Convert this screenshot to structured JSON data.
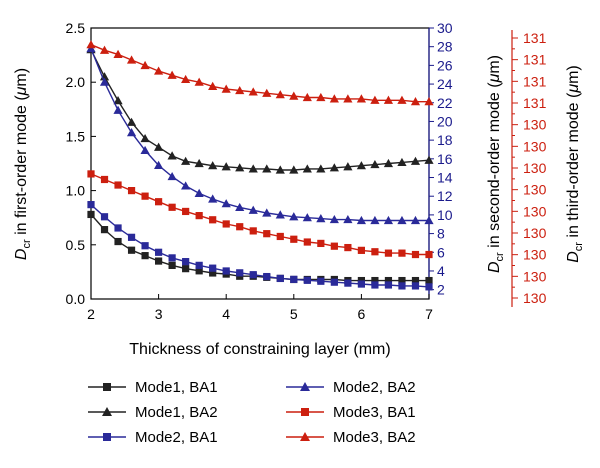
{
  "chart_data": {
    "type": "line",
    "xlabel": "Thickness of constraining layer (mm)",
    "x_ticks": [
      "2",
      "3",
      "4",
      "5",
      "6",
      "7"
    ],
    "xlim": [
      2,
      7
    ],
    "axes": {
      "left": {
        "label_main": "D",
        "label_sub": "cr",
        "label_rest": " in first-order mode (",
        "label_unit_italic": "μ",
        "label_end": "m)",
        "lim": [
          0,
          2.5
        ],
        "ticks": [
          "0.0",
          "0.5",
          "1.0",
          "1.5",
          "2.0",
          "2.5"
        ],
        "color": "#000000"
      },
      "right1": {
        "label_main": "D",
        "label_sub": "cr",
        "label_rest": " in second-order mode (",
        "label_unit_italic": "μ",
        "label_end": "m)",
        "lim": [
          1,
          30
        ],
        "ticks": [
          "2",
          "4",
          "6",
          "8",
          "10",
          "12",
          "14",
          "16",
          "18",
          "20",
          "22",
          "24",
          "26",
          "28",
          "30"
        ],
        "color": "#1a1a8c"
      },
      "right2": {
        "label_main": "D",
        "label_sub": "cr",
        "label_rest": " in third-order mode (",
        "label_unit_italic": "μ",
        "label_end": "m)",
        "lim": [
          129.9,
          131.85
        ],
        "ticks": [
          "130",
          "130",
          "130",
          "130",
          "130",
          "130",
          "130",
          "130",
          "130",
          "131",
          "131",
          "131",
          "131"
        ],
        "color": "#cc1f0f"
      }
    },
    "series": [
      {
        "name": "Mode1, BA1",
        "axis": "left",
        "color": "#222222",
        "marker": "square",
        "x": [
          2.0,
          2.2,
          2.4,
          2.6,
          2.8,
          3.0,
          3.2,
          3.4,
          3.6,
          3.8,
          4.0,
          4.2,
          4.4,
          4.6,
          4.8,
          5.0,
          5.2,
          5.4,
          5.6,
          5.8,
          6.0,
          6.2,
          6.4,
          6.6,
          6.8,
          7.0
        ],
        "values": [
          0.78,
          0.64,
          0.53,
          0.45,
          0.4,
          0.35,
          0.31,
          0.28,
          0.26,
          0.24,
          0.23,
          0.21,
          0.21,
          0.2,
          0.19,
          0.18,
          0.18,
          0.18,
          0.18,
          0.17,
          0.17,
          0.17,
          0.17,
          0.17,
          0.17,
          0.17
        ]
      },
      {
        "name": "Mode1, BA2",
        "axis": "left",
        "color": "#222222",
        "marker": "triangle",
        "x": [
          2.0,
          2.2,
          2.4,
          2.6,
          2.8,
          3.0,
          3.2,
          3.4,
          3.6,
          3.8,
          4.0,
          4.2,
          4.4,
          4.6,
          4.8,
          5.0,
          5.2,
          5.4,
          5.6,
          5.8,
          6.0,
          6.2,
          6.4,
          6.6,
          6.8,
          7.0
        ],
        "values": [
          2.3,
          2.05,
          1.83,
          1.63,
          1.48,
          1.4,
          1.32,
          1.27,
          1.25,
          1.23,
          1.22,
          1.21,
          1.2,
          1.2,
          1.19,
          1.19,
          1.2,
          1.2,
          1.21,
          1.22,
          1.23,
          1.24,
          1.25,
          1.26,
          1.27,
          1.28
        ]
      },
      {
        "name": "Mode2, BA1",
        "axis": "right1",
        "color": "#2a2a99",
        "marker": "square",
        "x": [
          2.0,
          2.2,
          2.4,
          2.6,
          2.8,
          3.0,
          3.2,
          3.4,
          3.6,
          3.8,
          4.0,
          4.2,
          4.4,
          4.6,
          4.8,
          5.0,
          5.2,
          5.4,
          5.6,
          5.8,
          6.0,
          6.2,
          6.4,
          6.6,
          6.8,
          7.0
        ],
        "values": [
          11.1,
          9.8,
          8.6,
          7.6,
          6.7,
          6.0,
          5.4,
          5.0,
          4.6,
          4.3,
          4.0,
          3.8,
          3.6,
          3.4,
          3.2,
          3.1,
          3.0,
          2.9,
          2.8,
          2.7,
          2.6,
          2.5,
          2.5,
          2.4,
          2.4,
          2.3
        ]
      },
      {
        "name": "Mode2, BA2",
        "axis": "right1",
        "color": "#2a2a99",
        "marker": "triangle",
        "x": [
          2.0,
          2.2,
          2.4,
          2.6,
          2.8,
          3.0,
          3.2,
          3.4,
          3.6,
          3.8,
          4.0,
          4.2,
          4.4,
          4.6,
          4.8,
          5.0,
          5.2,
          5.4,
          5.6,
          5.8,
          6.0,
          6.2,
          6.4,
          6.6,
          6.8,
          7.0
        ],
        "values": [
          27.8,
          24.2,
          21.2,
          18.8,
          16.9,
          15.3,
          14.1,
          13.1,
          12.3,
          11.7,
          11.2,
          10.8,
          10.5,
          10.2,
          10.0,
          9.8,
          9.7,
          9.6,
          9.5,
          9.5,
          9.4,
          9.4,
          9.4,
          9.4,
          9.4,
          9.4
        ]
      },
      {
        "name": "Mode3, BA1",
        "axis": "right2",
        "color": "#cc1f0f",
        "marker": "square",
        "x": [
          2.0,
          2.2,
          2.4,
          2.6,
          2.8,
          3.0,
          3.2,
          3.4,
          3.6,
          3.8,
          4.0,
          4.2,
          4.4,
          4.6,
          4.8,
          5.0,
          5.2,
          5.4,
          5.6,
          5.8,
          6.0,
          6.2,
          6.4,
          6.6,
          6.8,
          7.0
        ],
        "values": [
          130.8,
          130.76,
          130.72,
          130.68,
          130.64,
          130.6,
          130.56,
          130.53,
          130.5,
          130.47,
          130.44,
          130.42,
          130.39,
          130.37,
          130.35,
          130.33,
          130.31,
          130.3,
          130.28,
          130.27,
          130.25,
          130.24,
          130.23,
          130.23,
          130.22,
          130.22
        ]
      },
      {
        "name": "Mode3, BA2",
        "axis": "right2",
        "color": "#cc1f0f",
        "marker": "triangle",
        "x": [
          2.0,
          2.2,
          2.4,
          2.6,
          2.8,
          3.0,
          3.2,
          3.4,
          3.6,
          3.8,
          4.0,
          4.2,
          4.4,
          4.6,
          4.8,
          5.0,
          5.2,
          5.4,
          5.6,
          5.8,
          6.0,
          6.2,
          6.4,
          6.6,
          6.8,
          7.0
        ],
        "values": [
          131.73,
          131.69,
          131.66,
          131.62,
          131.58,
          131.54,
          131.51,
          131.48,
          131.46,
          131.43,
          131.41,
          131.4,
          131.39,
          131.38,
          131.37,
          131.36,
          131.35,
          131.35,
          131.34,
          131.34,
          131.34,
          131.33,
          131.33,
          131.33,
          131.32,
          131.32
        ]
      }
    ],
    "legend": {
      "placement": "bottom",
      "entries": [
        "Mode1, BA1",
        "Mode2, BA2",
        "Mode1, BA2",
        "Mode3, BA1",
        "Mode2, BA1",
        "Mode3, BA2"
      ]
    }
  }
}
